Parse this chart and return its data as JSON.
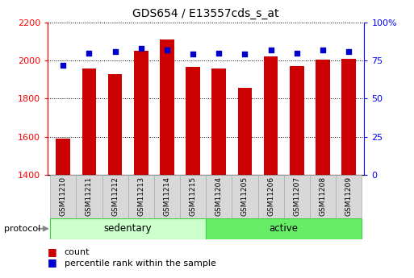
{
  "title": "GDS654 / E13557cds_s_at",
  "samples": [
    "GSM11210",
    "GSM11211",
    "GSM11212",
    "GSM11213",
    "GSM11214",
    "GSM11215",
    "GSM11204",
    "GSM11205",
    "GSM11206",
    "GSM11207",
    "GSM11208",
    "GSM11209"
  ],
  "counts": [
    1590,
    1960,
    1930,
    2050,
    2110,
    1965,
    1960,
    1855,
    2020,
    1970,
    2005,
    2010
  ],
  "percentile_ranks": [
    72,
    80,
    81,
    83,
    82,
    79,
    80,
    79,
    82,
    80,
    82,
    81
  ],
  "group_colors": {
    "sedentary": "#ccffcc",
    "active": "#66ee66"
  },
  "bar_color": "#cc0000",
  "dot_color": "#0000cc",
  "ylim_left": [
    1400,
    2200
  ],
  "ylim_right": [
    0,
    100
  ],
  "yticks_left": [
    1400,
    1600,
    1800,
    2000,
    2200
  ],
  "yticks_right": [
    0,
    25,
    50,
    75,
    100
  ],
  "ytick_labels_right": [
    "0",
    "25",
    "50",
    "75",
    "100%"
  ],
  "background_color": "#ffffff",
  "legend_items": [
    "count",
    "percentile rank within the sample"
  ],
  "legend_colors": [
    "#cc0000",
    "#0000cc"
  ],
  "protocol_label": "protocol",
  "bar_width": 0.55
}
